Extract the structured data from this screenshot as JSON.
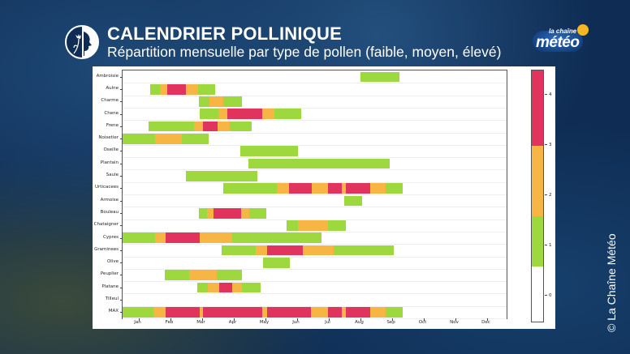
{
  "header": {
    "title": "CALENDRIER POLLINIQUE",
    "subtitle": "Répartition mensuelle par type de pollen (faible, moyen, élevé)",
    "logo_icon": "person-smelling-flower-icon"
  },
  "brand": {
    "small": "la chaîne",
    "big": "météo",
    "sun_color": "#f5b820"
  },
  "credit": "© La Chaîne Météo",
  "colors": {
    "0": "#ffffff",
    "1": "#9dd83f",
    "2": "#f7b643",
    "3": "#e0335e"
  },
  "chart_data": {
    "type": "heatmap",
    "title": "CALENDRIER POLLINIQUE",
    "subtitle": "Répartition mensuelle par type de pollen (faible, moyen, élevé)",
    "xlabel": "",
    "ylabel": "",
    "x_ticks": [
      "Jan",
      "Feb",
      "Mar",
      "Apr",
      "May",
      "Jun",
      "Jul",
      "Aug",
      "Sep",
      "Oct",
      "Nov",
      "Dec"
    ],
    "x_range_months": [
      0,
      12.2
    ],
    "colorbar": {
      "ticks": [
        "0",
        "1",
        "2",
        "3",
        "4"
      ],
      "levels": [
        {
          "value": 0,
          "label": "aucun",
          "color": "#ffffff"
        },
        {
          "value": 1,
          "label": "faible",
          "color": "#9dd83f"
        },
        {
          "value": 2,
          "label": "moyen",
          "color": "#f7b643"
        },
        {
          "value": 3,
          "label": "élevé",
          "color": "#e0335e"
        }
      ]
    },
    "segment_format": "[start_month, end_month, level] where month 0 = start of January",
    "rows": [
      {
        "name": "Ambroisie",
        "segments": [
          [
            7.51,
            8.74,
            1
          ]
        ]
      },
      {
        "name": "Aulne",
        "segments": [
          [
            0.87,
            1.18,
            1
          ],
          [
            1.18,
            1.41,
            2
          ],
          [
            1.41,
            2.0,
            3
          ],
          [
            2.0,
            2.38,
            2
          ],
          [
            2.38,
            2.92,
            1
          ]
        ]
      },
      {
        "name": "Charme",
        "segments": [
          [
            2.41,
            2.74,
            1
          ],
          [
            2.74,
            3.18,
            2
          ],
          [
            3.18,
            3.77,
            1
          ]
        ]
      },
      {
        "name": "Chene",
        "segments": [
          [
            2.44,
            3.03,
            1
          ],
          [
            3.03,
            3.31,
            2
          ],
          [
            3.31,
            4.41,
            3
          ],
          [
            4.41,
            4.79,
            2
          ],
          [
            4.79,
            5.64,
            1
          ]
        ]
      },
      {
        "name": "Frene",
        "segments": [
          [
            0.82,
            2.26,
            1
          ],
          [
            2.26,
            2.54,
            2
          ],
          [
            2.54,
            3.0,
            3
          ],
          [
            3.0,
            3.38,
            2
          ],
          [
            3.38,
            4.08,
            1
          ]
        ]
      },
      {
        "name": "Noisetier",
        "segments": [
          [
            0.0,
            1.03,
            1
          ],
          [
            1.03,
            1.87,
            2
          ],
          [
            1.87,
            2.72,
            1
          ]
        ]
      },
      {
        "name": "Oseille",
        "segments": [
          [
            3.72,
            5.54,
            1
          ]
        ]
      },
      {
        "name": "Plantain",
        "segments": [
          [
            3.97,
            8.44,
            1
          ]
        ]
      },
      {
        "name": "Saule",
        "segments": [
          [
            2.0,
            4.26,
            1
          ]
        ]
      },
      {
        "name": "Urticacees",
        "segments": [
          [
            3.18,
            4.87,
            1
          ],
          [
            4.87,
            5.26,
            2
          ],
          [
            5.26,
            5.97,
            3
          ],
          [
            5.97,
            6.49,
            2
          ],
          [
            6.49,
            6.92,
            3
          ],
          [
            6.92,
            7.05,
            2
          ],
          [
            7.05,
            7.82,
            3
          ],
          [
            7.82,
            8.31,
            2
          ],
          [
            8.31,
            8.85,
            1
          ]
        ]
      },
      {
        "name": "Armoise",
        "segments": [
          [
            7.0,
            7.56,
            1
          ]
        ]
      },
      {
        "name": "Bouleau",
        "segments": [
          [
            2.41,
            2.67,
            1
          ],
          [
            2.67,
            2.87,
            2
          ],
          [
            2.87,
            3.74,
            3
          ],
          [
            3.74,
            4.0,
            2
          ],
          [
            4.0,
            4.54,
            1
          ]
        ]
      },
      {
        "name": "Chataigner",
        "segments": [
          [
            5.18,
            5.54,
            1
          ],
          [
            5.54,
            6.49,
            2
          ],
          [
            6.49,
            7.05,
            1
          ]
        ]
      },
      {
        "name": "Cypres",
        "segments": [
          [
            0.0,
            1.03,
            1
          ],
          [
            1.03,
            1.36,
            2
          ],
          [
            1.36,
            2.44,
            3
          ],
          [
            2.44,
            3.46,
            2
          ],
          [
            3.46,
            6.28,
            1
          ]
        ]
      },
      {
        "name": "Graminees",
        "segments": [
          [
            3.13,
            4.21,
            1
          ],
          [
            4.21,
            4.56,
            2
          ],
          [
            4.56,
            5.69,
            3
          ],
          [
            5.69,
            6.67,
            2
          ],
          [
            6.67,
            8.56,
            1
          ]
        ]
      },
      {
        "name": "Olive",
        "segments": [
          [
            4.44,
            5.28,
            1
          ]
        ]
      },
      {
        "name": "Peuplier",
        "segments": [
          [
            1.33,
            2.1,
            1
          ],
          [
            2.1,
            2.97,
            2
          ],
          [
            2.97,
            3.77,
            1
          ]
        ]
      },
      {
        "name": "Platane",
        "segments": [
          [
            2.36,
            2.69,
            1
          ],
          [
            2.69,
            3.05,
            2
          ],
          [
            3.05,
            3.46,
            3
          ],
          [
            3.46,
            3.77,
            2
          ],
          [
            3.77,
            4.36,
            1
          ]
        ]
      },
      {
        "name": "Tilleul",
        "segments": []
      },
      {
        "name": "MAX",
        "segments": [
          [
            0.0,
            0.97,
            1
          ],
          [
            0.97,
            1.36,
            2
          ],
          [
            1.36,
            2.44,
            3
          ],
          [
            2.44,
            2.54,
            2
          ],
          [
            2.54,
            4.41,
            3
          ],
          [
            4.41,
            4.56,
            2
          ],
          [
            4.56,
            5.95,
            3
          ],
          [
            5.95,
            6.49,
            2
          ],
          [
            6.49,
            6.92,
            3
          ],
          [
            6.92,
            7.05,
            2
          ],
          [
            7.05,
            7.82,
            3
          ],
          [
            7.82,
            8.31,
            2
          ],
          [
            8.31,
            8.85,
            1
          ]
        ]
      }
    ]
  }
}
